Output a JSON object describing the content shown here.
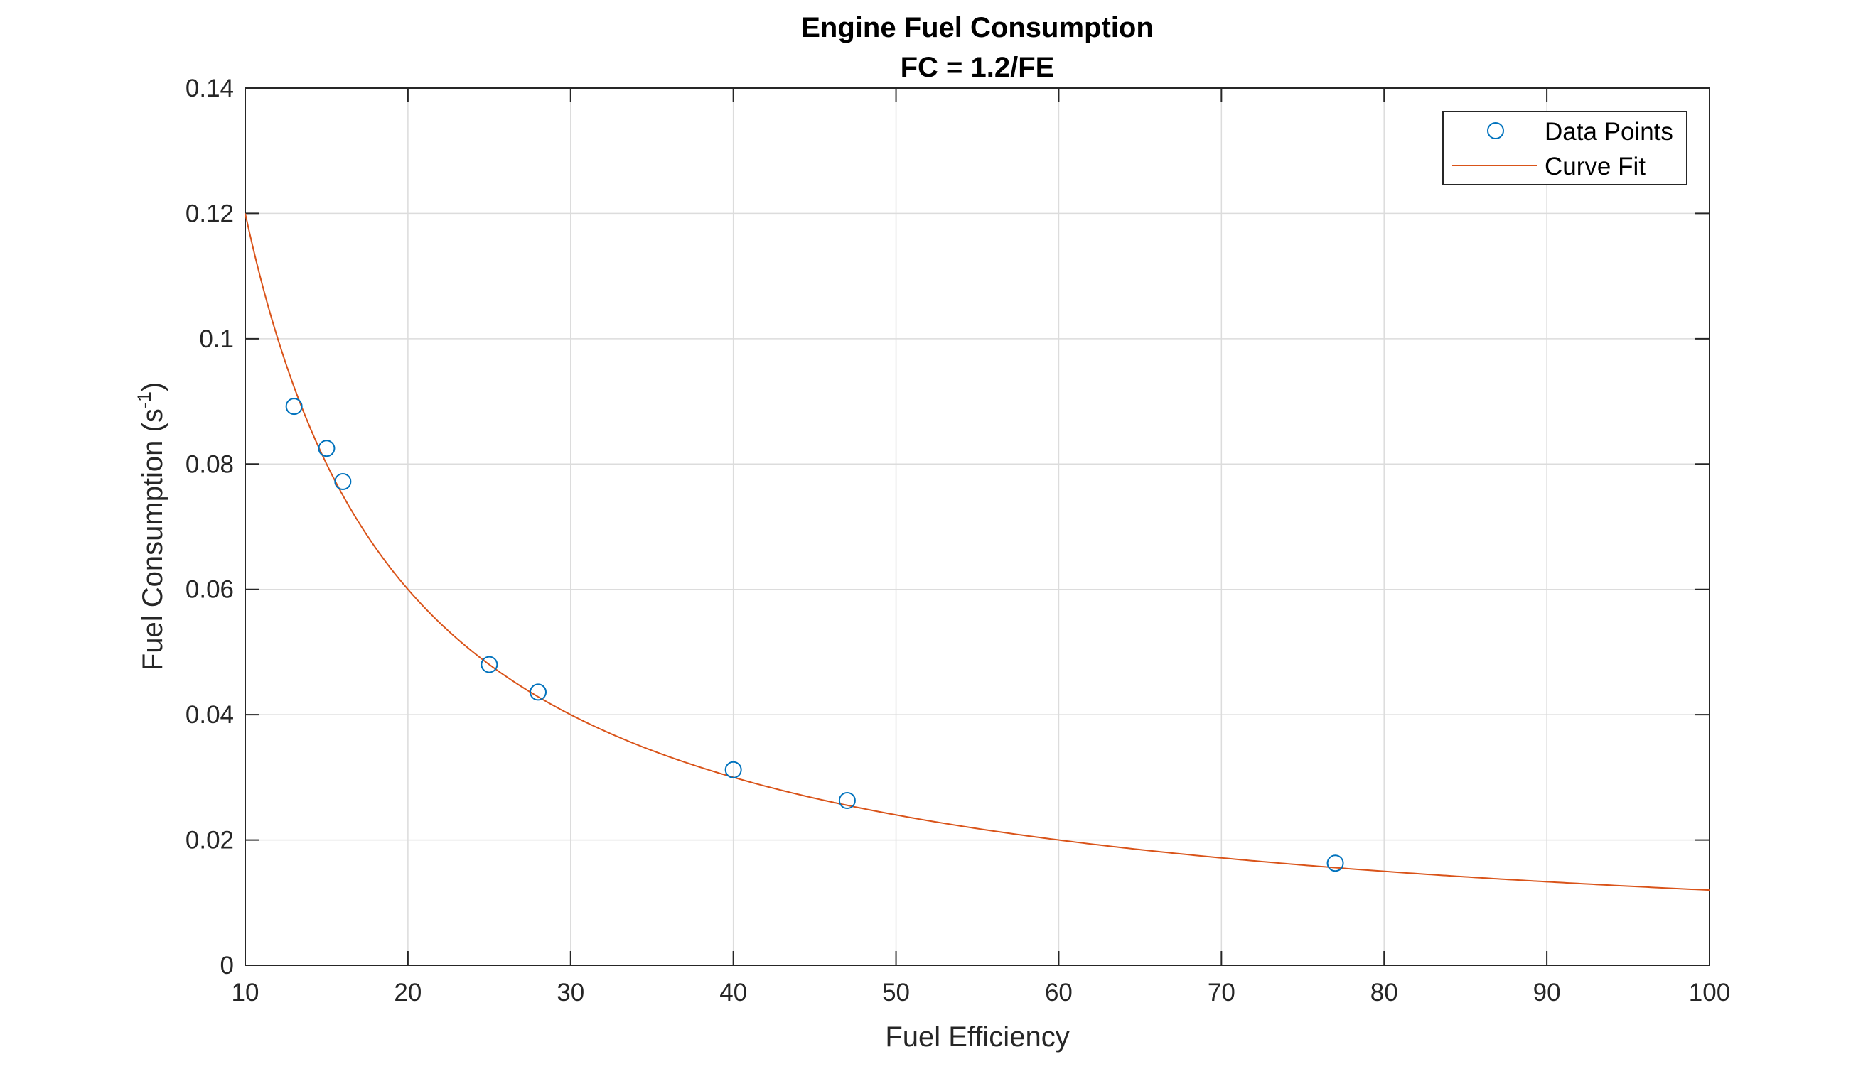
{
  "chart_data": {
    "type": "scatter",
    "title": "Engine Fuel Consumption",
    "subtitle": "FC = 1.2/FE",
    "xlabel": "Fuel Efficiency",
    "ylabel_main": "Fuel Consumption (s",
    "ylabel_sup": "-1",
    "ylabel_close": ")",
    "xlim": [
      10,
      100
    ],
    "ylim": [
      0,
      0.14
    ],
    "xticks": [
      10,
      20,
      30,
      40,
      50,
      60,
      70,
      80,
      90,
      100
    ],
    "yticks": [
      0,
      0.02,
      0.04,
      0.06,
      0.08,
      0.1,
      0.12,
      0.14
    ],
    "xtick_labels": [
      "10",
      "20",
      "30",
      "40",
      "50",
      "60",
      "70",
      "80",
      "90",
      "100"
    ],
    "ytick_labels": [
      "0",
      "0.02",
      "0.04",
      "0.06",
      "0.08",
      "0.1",
      "0.12",
      "0.14"
    ],
    "grid": true,
    "legend_position": "top-right",
    "series": [
      {
        "name": "Data Points",
        "kind": "markers",
        "marker": "circle",
        "color": "#0072BD",
        "x": [
          13,
          15,
          16,
          25,
          28,
          40,
          47,
          77
        ],
        "y": [
          0.0892,
          0.0825,
          0.0772,
          0.048,
          0.0436,
          0.0312,
          0.0263,
          0.0163
        ]
      },
      {
        "name": "Curve Fit",
        "kind": "line",
        "color": "#D95319",
        "formula": "1.2/x",
        "coefficient": 1.2
      }
    ]
  }
}
